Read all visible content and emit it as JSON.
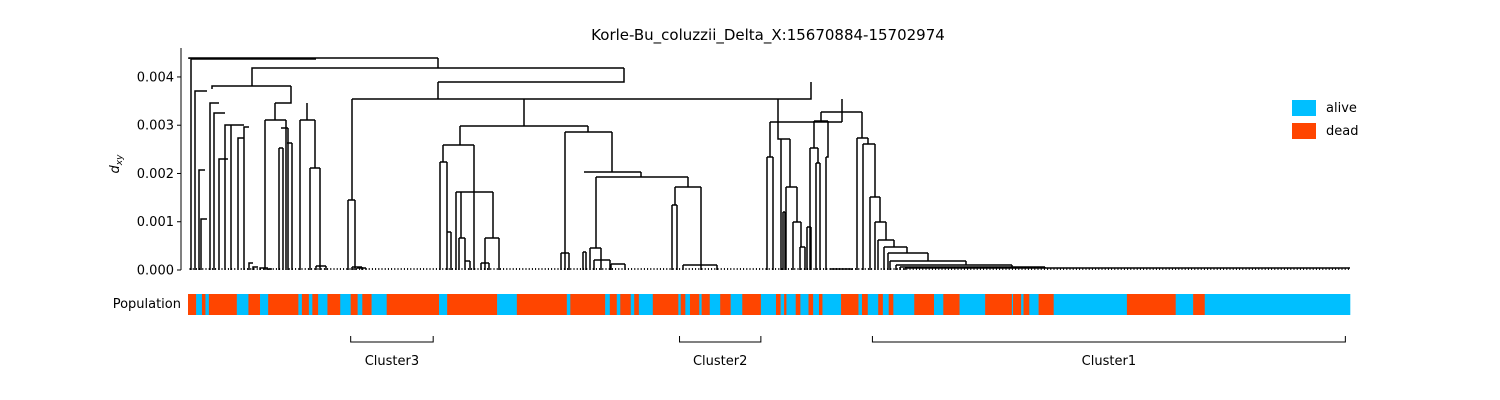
{
  "chart_data": {
    "type": "dendrogram",
    "title": "Korle-Bu_coluzzii_Delta_X:15670884-15702974",
    "ylabel": "d",
    "ylabel_sub": "xy",
    "ylim": [
      0,
      0.0046
    ],
    "yticks": [
      0.0,
      0.001,
      0.002,
      0.003,
      0.004
    ],
    "ytick_labels": [
      "0.000",
      "0.001",
      "0.002",
      "0.003",
      "0.004"
    ],
    "grid": false,
    "legend_position": "right",
    "legend": [
      {
        "label": "alive",
        "color": "#00bfff"
      },
      {
        "label": "dead",
        "color": "#ff4500"
      }
    ],
    "population_track_label": "Population",
    "population_segments": [
      [
        "dead",
        0,
        0.7
      ],
      [
        "alive",
        0.7,
        1.2
      ],
      [
        "dead",
        1.2,
        1.5
      ],
      [
        "alive",
        1.5,
        1.8
      ],
      [
        "dead",
        1.8,
        4.2
      ],
      [
        "alive",
        4.2,
        5.2
      ],
      [
        "dead",
        5.2,
        6.2
      ],
      [
        "alive",
        6.2,
        6.9
      ],
      [
        "dead",
        6.9,
        9.5
      ],
      [
        "alive",
        9.5,
        9.8
      ],
      [
        "dead",
        9.8,
        10.4
      ],
      [
        "alive",
        10.4,
        10.7
      ],
      [
        "dead",
        10.7,
        11.2
      ],
      [
        "alive",
        11.2,
        12.0
      ],
      [
        "dead",
        12.0,
        13.1
      ],
      [
        "alive",
        13.1,
        14.0
      ],
      [
        "dead",
        14.0,
        14.6
      ],
      [
        "alive",
        14.6,
        15.0
      ],
      [
        "dead",
        15.0,
        15.8
      ],
      [
        "alive",
        15.8,
        17.1
      ],
      [
        "dead",
        17.1,
        21.6
      ],
      [
        "alive",
        21.6,
        22.3
      ],
      [
        "dead",
        22.3,
        26.6
      ],
      [
        "alive",
        26.6,
        28.3
      ],
      [
        "dead",
        28.3,
        32.6
      ],
      [
        "alive",
        32.6,
        32.9
      ],
      [
        "dead",
        32.9,
        35.9
      ],
      [
        "alive",
        35.9,
        36.3
      ],
      [
        "dead",
        36.3,
        36.9
      ],
      [
        "alive",
        36.9,
        37.2
      ],
      [
        "dead",
        37.2,
        38.1
      ],
      [
        "alive",
        38.1,
        38.4
      ],
      [
        "dead",
        38.4,
        38.8
      ],
      [
        "alive",
        38.8,
        40.0
      ],
      [
        "dead",
        40.0,
        42.2
      ],
      [
        "alive",
        42.2,
        42.4
      ],
      [
        "dead",
        42.4,
        42.8
      ],
      [
        "alive",
        42.8,
        43.2
      ],
      [
        "dead",
        43.2,
        44.0
      ],
      [
        "alive",
        44.0,
        44.2
      ],
      [
        "dead",
        44.2,
        44.9
      ],
      [
        "alive",
        44.9,
        45.8
      ],
      [
        "dead",
        45.8,
        46.7
      ],
      [
        "alive",
        46.7,
        47.7
      ],
      [
        "dead",
        47.7,
        49.3
      ],
      [
        "alive",
        49.3,
        50.6
      ],
      [
        "dead",
        50.6,
        51.0
      ],
      [
        "alive",
        51.0,
        51.3
      ],
      [
        "dead",
        51.3,
        51.5
      ],
      [
        "alive",
        51.5,
        52.3
      ],
      [
        "dead",
        52.3,
        52.7
      ],
      [
        "alive",
        52.7,
        53.4
      ],
      [
        "dead",
        53.4,
        53.8
      ],
      [
        "alive",
        53.8,
        54.3
      ],
      [
        "dead",
        54.3,
        54.6
      ],
      [
        "alive",
        54.6,
        56.2
      ],
      [
        "dead",
        56.2,
        57.7
      ],
      [
        "alive",
        57.7,
        58.0
      ],
      [
        "dead",
        58.0,
        58.5
      ],
      [
        "alive",
        58.5,
        59.4
      ],
      [
        "dead",
        59.4,
        59.8
      ],
      [
        "alive",
        59.8,
        60.3
      ],
      [
        "dead",
        60.3,
        60.7
      ],
      [
        "alive",
        60.7,
        62.5
      ],
      [
        "dead",
        62.5,
        64.2
      ],
      [
        "alive",
        64.2,
        65.0
      ],
      [
        "dead",
        65.0,
        66.4
      ],
      [
        "alive",
        66.4,
        68.6
      ],
      [
        "dead",
        68.6,
        70.9
      ],
      [
        "alive",
        70.9,
        71.0
      ],
      [
        "dead",
        71.0,
        71.7
      ],
      [
        "alive",
        71.7,
        71.9
      ],
      [
        "dead",
        71.9,
        72.4
      ],
      [
        "alive",
        72.4,
        73.2
      ],
      [
        "dead",
        73.2,
        74.5
      ],
      [
        "alive",
        74.5,
        80.8
      ],
      [
        "dead",
        80.8,
        85.0
      ],
      [
        "alive",
        85.0,
        86.5
      ],
      [
        "dead",
        86.5,
        87.5
      ],
      [
        "alive",
        87.5,
        100.0
      ]
    ],
    "clusters": [
      {
        "label": "Cluster3",
        "start": 14.0,
        "end": 21.1
      },
      {
        "label": "Cluster2",
        "start": 42.3,
        "end": 49.3
      },
      {
        "label": "Cluster1",
        "start": 58.9,
        "end": 99.6
      }
    ]
  }
}
